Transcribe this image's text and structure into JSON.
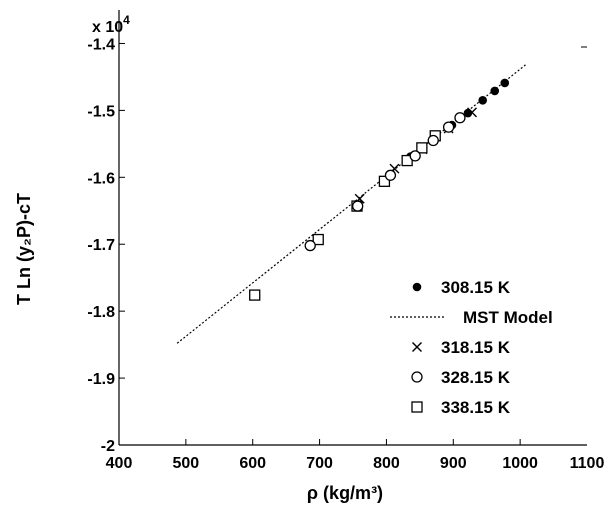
{
  "chart_data": {
    "type": "scatter",
    "xlabel": "ρ (kg/m³)",
    "ylabel": "T Ln (y₂P)-cT",
    "y_multiplier": "x 10",
    "y_multiplier_exp": "4",
    "xlim": [
      400,
      1100
    ],
    "ylim": [
      -2.0,
      -1.35
    ],
    "xticks": [
      400,
      500,
      600,
      700,
      800,
      900,
      1000,
      1100
    ],
    "yticks": [
      -2.0,
      -1.9,
      -1.8,
      -1.7,
      -1.6,
      -1.5,
      -1.4
    ],
    "ytick_labels": [
      "-2",
      "-1.9",
      "-1.8",
      "-1.7",
      "-1.6",
      "-1.5",
      "-1.4"
    ],
    "grid": false,
    "legend_position": "bottom-right",
    "series": [
      {
        "name": "308.15 K",
        "marker": "filled-circle",
        "x": [
          836,
          872,
          898,
          922,
          944,
          962,
          977
        ],
        "y": [
          -1.569,
          -1.543,
          -1.522,
          -1.504,
          -1.485,
          -1.471,
          -1.459
        ]
      },
      {
        "name": "MST Model",
        "marker": "dotted-line",
        "x": [
          487,
          1008
        ],
        "y": [
          -1.848,
          -1.432
        ]
      },
      {
        "name": "318.15 K",
        "marker": "x",
        "x": [
          760,
          812,
          854,
          893,
          928
        ],
        "y": [
          -1.632,
          -1.587,
          -1.558,
          -1.527,
          -1.503
        ]
      },
      {
        "name": "328.15 K",
        "marker": "open-circle",
        "x": [
          686,
          757,
          806,
          843,
          870,
          893,
          910
        ],
        "y": [
          -1.702,
          -1.643,
          -1.597,
          -1.568,
          -1.545,
          -1.525,
          -1.511
        ]
      },
      {
        "name": "338.15 K",
        "marker": "open-square",
        "x": [
          603,
          698,
          756,
          797,
          831,
          853,
          873
        ],
        "y": [
          -1.776,
          -1.693,
          -1.643,
          -1.606,
          -1.575,
          -1.556,
          -1.538
        ]
      }
    ]
  }
}
